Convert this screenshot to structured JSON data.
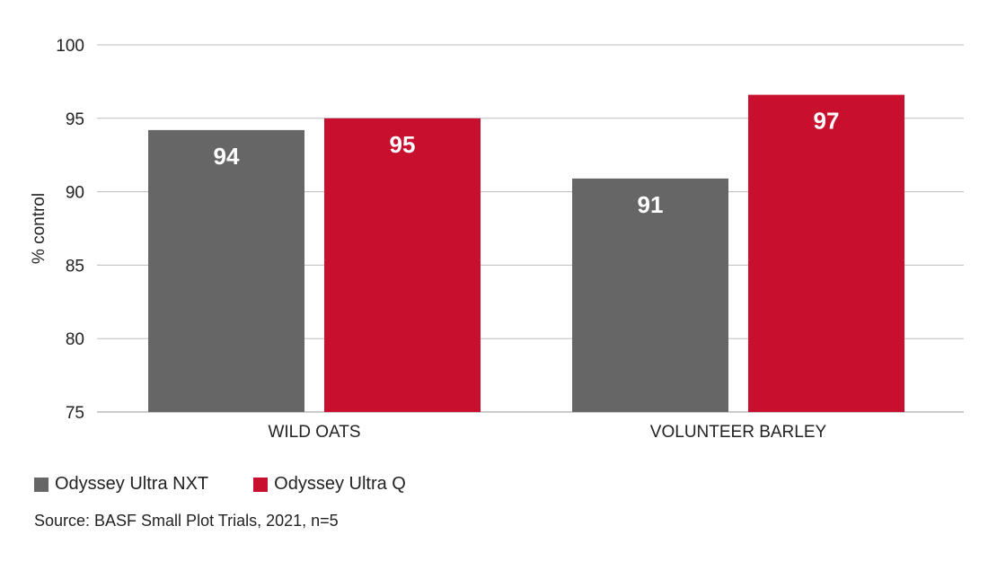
{
  "chart_data": {
    "type": "bar",
    "title": "",
    "xlabel": "",
    "ylabel": "% control",
    "ylim": [
      75,
      100
    ],
    "yticks": [
      75,
      80,
      85,
      90,
      95,
      100
    ],
    "grid": true,
    "legend_position": "bottom-left",
    "categories": [
      "WILD OATS",
      "VOLUNTEER BARLEY"
    ],
    "series": [
      {
        "name": "Odyssey Ultra NXT",
        "color": "#666666",
        "values": [
          94.2,
          90.9
        ],
        "labels": [
          "94",
          "91"
        ]
      },
      {
        "name": "Odyssey Ultra Q",
        "color": "#c8102e",
        "values": [
          95.0,
          96.6
        ],
        "labels": [
          "95",
          "97"
        ]
      }
    ]
  },
  "source_note": "Source: BASF Small Plot Trials, 2021, n=5"
}
